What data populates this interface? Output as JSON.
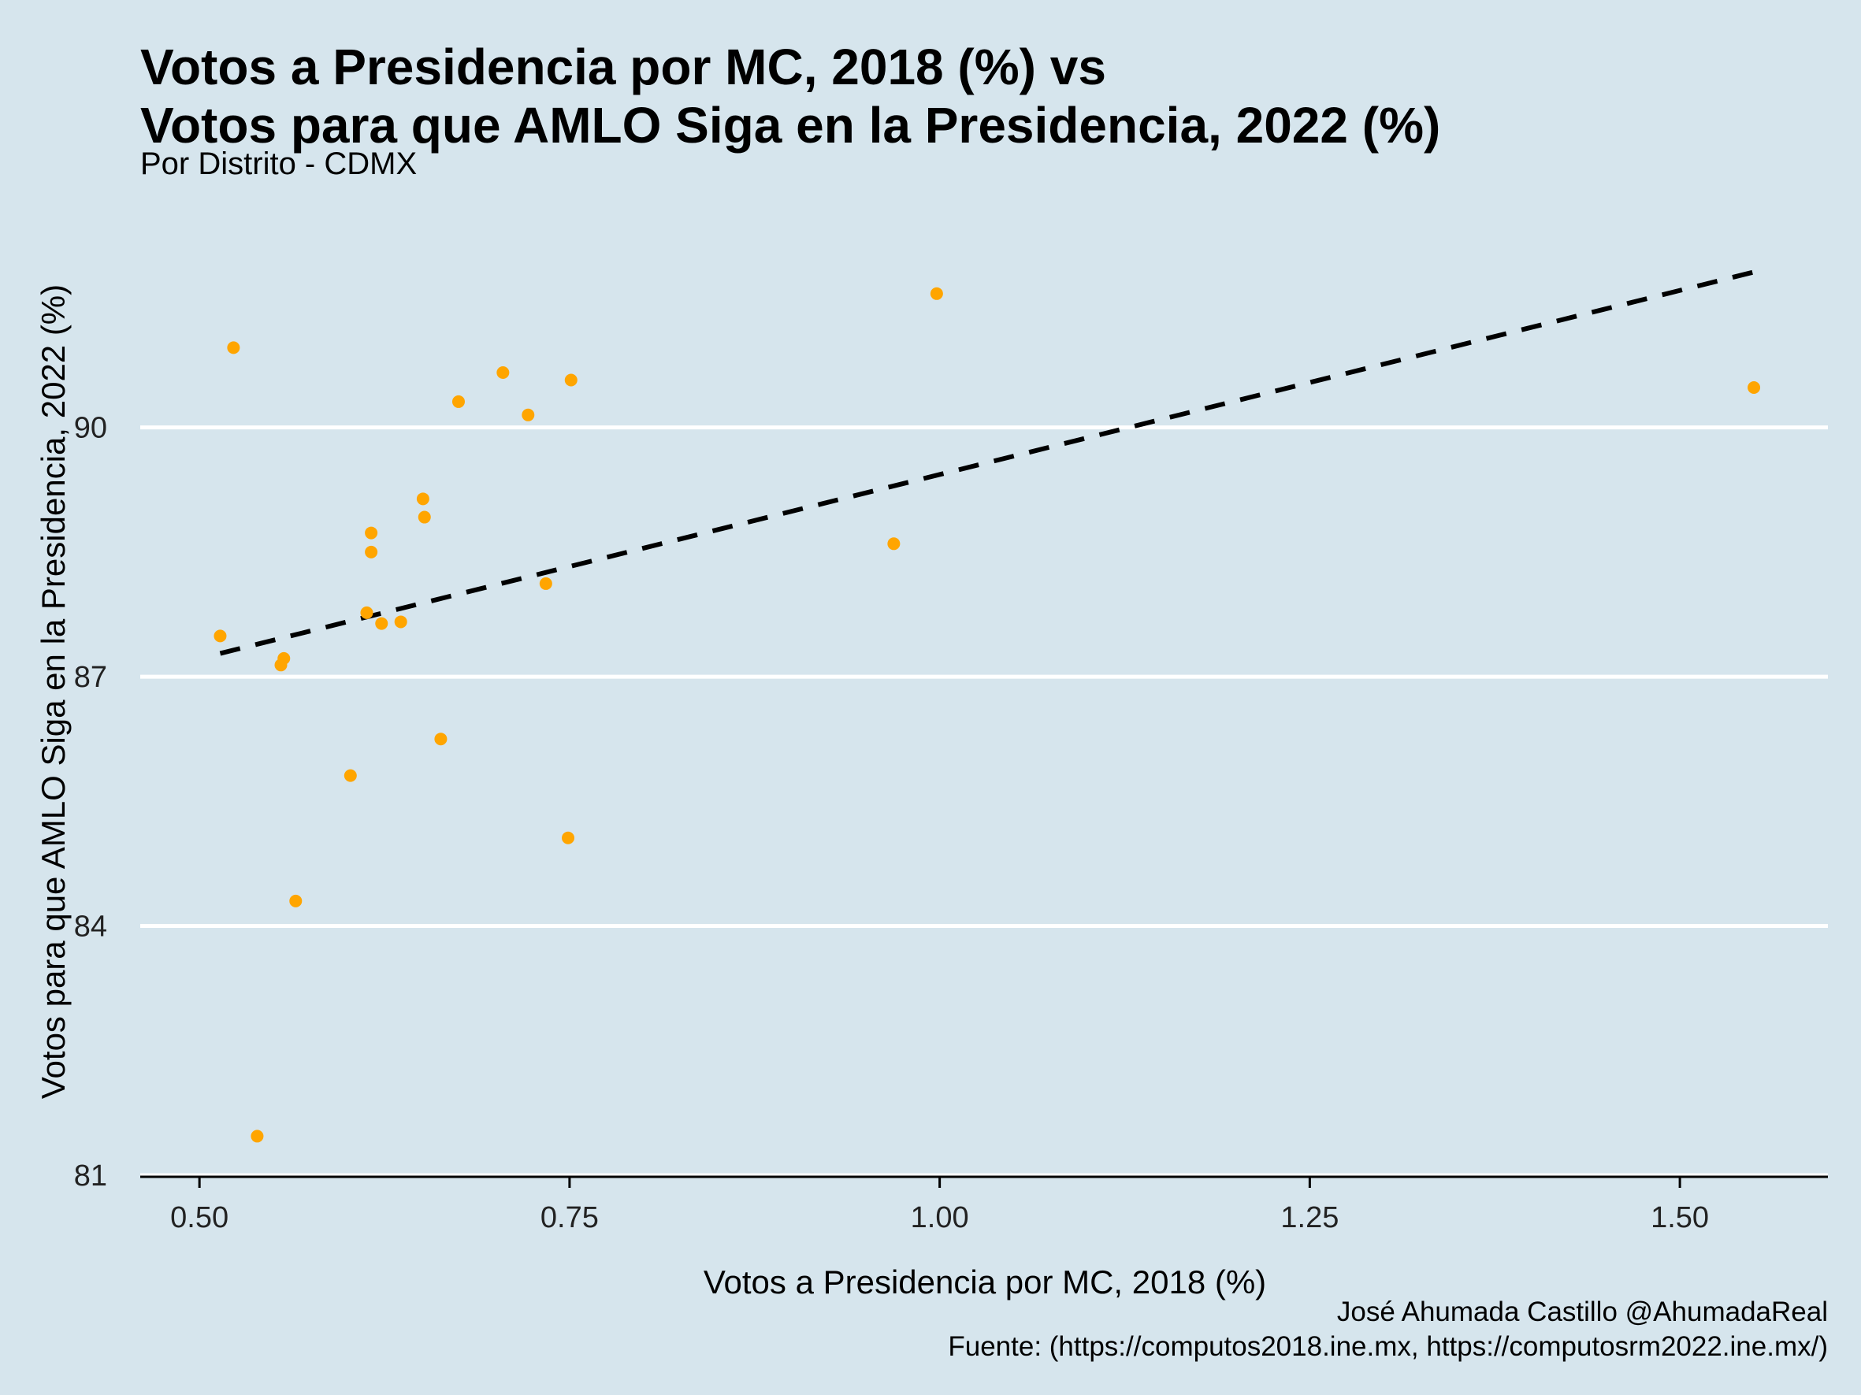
{
  "chart_data": {
    "type": "scatter",
    "title_line1": "Votos a Presidencia por MC, 2018 (%) vs",
    "title_line2": "Votos para que AMLO Siga en la Presidencia, 2022 (%)",
    "subtitle": "Por Distrito - CDMX",
    "xlabel": "Votos a Presidencia por MC, 2018 (%)",
    "ylabel": "Votos para que AMLO Siga en la Presidencia, 2022 (%)",
    "caption_line1": "José Ahumada Castillo @AhumadaReal",
    "caption_line2": "Fuente: (https://computos2018.ine.mx, https://computosrm2022.ine.mx/)",
    "xlim": [
      0.46,
      1.6
    ],
    "ylim": [
      81.0,
      92.3
    ],
    "x_ticks": [
      0.5,
      0.75,
      1.0,
      1.25,
      1.5
    ],
    "x_tick_labels": [
      "0.50",
      "0.75",
      "1.00",
      "1.25",
      "1.50"
    ],
    "y_ticks": [
      81,
      84,
      87,
      90
    ],
    "y_tick_labels": [
      "81",
      "84",
      "87",
      "90"
    ],
    "grid": "horizontal",
    "point_color": "#ffa500",
    "line_color": "#000000",
    "points": [
      {
        "x": 0.514,
        "y": 87.49
      },
      {
        "x": 0.523,
        "y": 90.96
      },
      {
        "x": 0.539,
        "y": 81.47
      },
      {
        "x": 0.555,
        "y": 87.14
      },
      {
        "x": 0.557,
        "y": 87.22
      },
      {
        "x": 0.565,
        "y": 84.3
      },
      {
        "x": 0.602,
        "y": 85.81
      },
      {
        "x": 0.613,
        "y": 87.77
      },
      {
        "x": 0.616,
        "y": 88.73
      },
      {
        "x": 0.616,
        "y": 88.5
      },
      {
        "x": 0.623,
        "y": 87.64
      },
      {
        "x": 0.636,
        "y": 87.66
      },
      {
        "x": 0.651,
        "y": 89.14
      },
      {
        "x": 0.652,
        "y": 88.92
      },
      {
        "x": 0.663,
        "y": 86.25
      },
      {
        "x": 0.675,
        "y": 90.31
      },
      {
        "x": 0.705,
        "y": 90.66
      },
      {
        "x": 0.722,
        "y": 90.15
      },
      {
        "x": 0.734,
        "y": 88.12
      },
      {
        "x": 0.749,
        "y": 85.06
      },
      {
        "x": 0.751,
        "y": 90.57
      },
      {
        "x": 0.969,
        "y": 88.6
      },
      {
        "x": 0.998,
        "y": 91.61
      },
      {
        "x": 1.55,
        "y": 90.48
      }
    ],
    "trend_line": {
      "x": [
        0.514,
        1.55
      ],
      "y": [
        87.28,
        91.87
      ],
      "style": "dashed"
    }
  }
}
